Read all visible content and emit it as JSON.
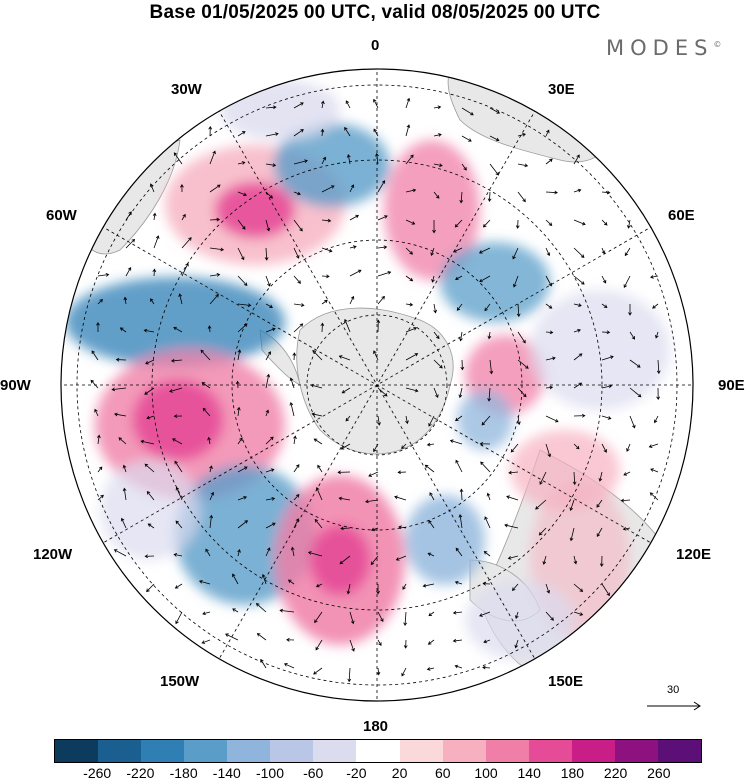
{
  "title": "Base 01/05/2025 00 UTC, valid 08/05/2025 00 UTC",
  "brand": "MODES",
  "brand_mark": "©",
  "longitude_labels": {
    "top": "0",
    "top_right": "30E",
    "right_upper": "60E",
    "right": "90E",
    "right_lower": "120E",
    "bottom_right": "150E",
    "bottom": "180",
    "bottom_left": "150W",
    "left_lower": "120W",
    "left": "90W",
    "left_upper": "60W",
    "top_left": "30W"
  },
  "reference_vector": {
    "value": "30"
  },
  "colorbar": {
    "colors": [
      "#0d3b5e",
      "#1a5f8f",
      "#2f7fb5",
      "#5a9dc9",
      "#8fb5dc",
      "#b9c6e6",
      "#dcdcef",
      "#ffffff",
      "#fbd8da",
      "#f6b0c0",
      "#f07fa8",
      "#e64b98",
      "#c91e88",
      "#8e1180",
      "#5b0f77"
    ],
    "tick_labels": [
      "-260",
      "-220",
      "-180",
      "-140",
      "-100",
      "-60",
      "-20",
      "20",
      "60",
      "100",
      "140",
      "180",
      "220",
      "260"
    ]
  },
  "colors": {
    "land": "#e8e8e8",
    "grid": "#000000"
  }
}
